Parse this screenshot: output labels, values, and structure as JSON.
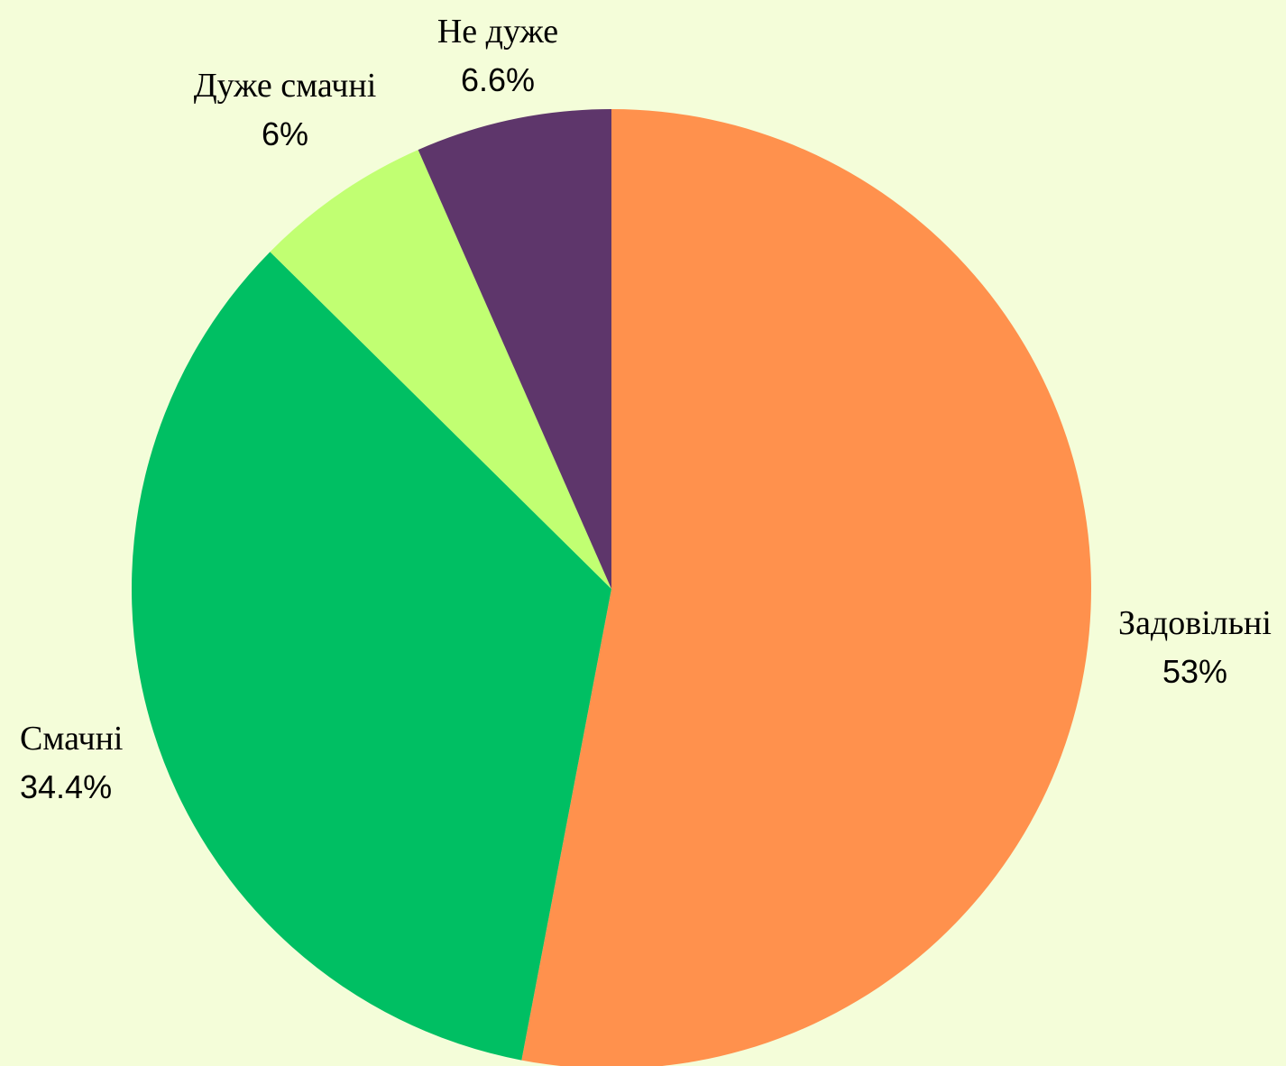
{
  "chart_data": {
    "type": "pie",
    "title": "",
    "start_angle_deg": 0,
    "direction": "clockwise",
    "slices": [
      {
        "name": "Задовільні",
        "value": 53,
        "label": "53%",
        "color": "#FF914D"
      },
      {
        "name": "Смачні",
        "value": 34.4,
        "label": "34.4%",
        "color": "#00BF63"
      },
      {
        "name": "Дуже смачні",
        "value": 6,
        "label": "6%",
        "color": "#C1FF72"
      },
      {
        "name": "Не дуже",
        "value": 6.6,
        "label": "6.6%",
        "color": "#5E366B"
      }
    ],
    "background": "#F4FDD9"
  }
}
